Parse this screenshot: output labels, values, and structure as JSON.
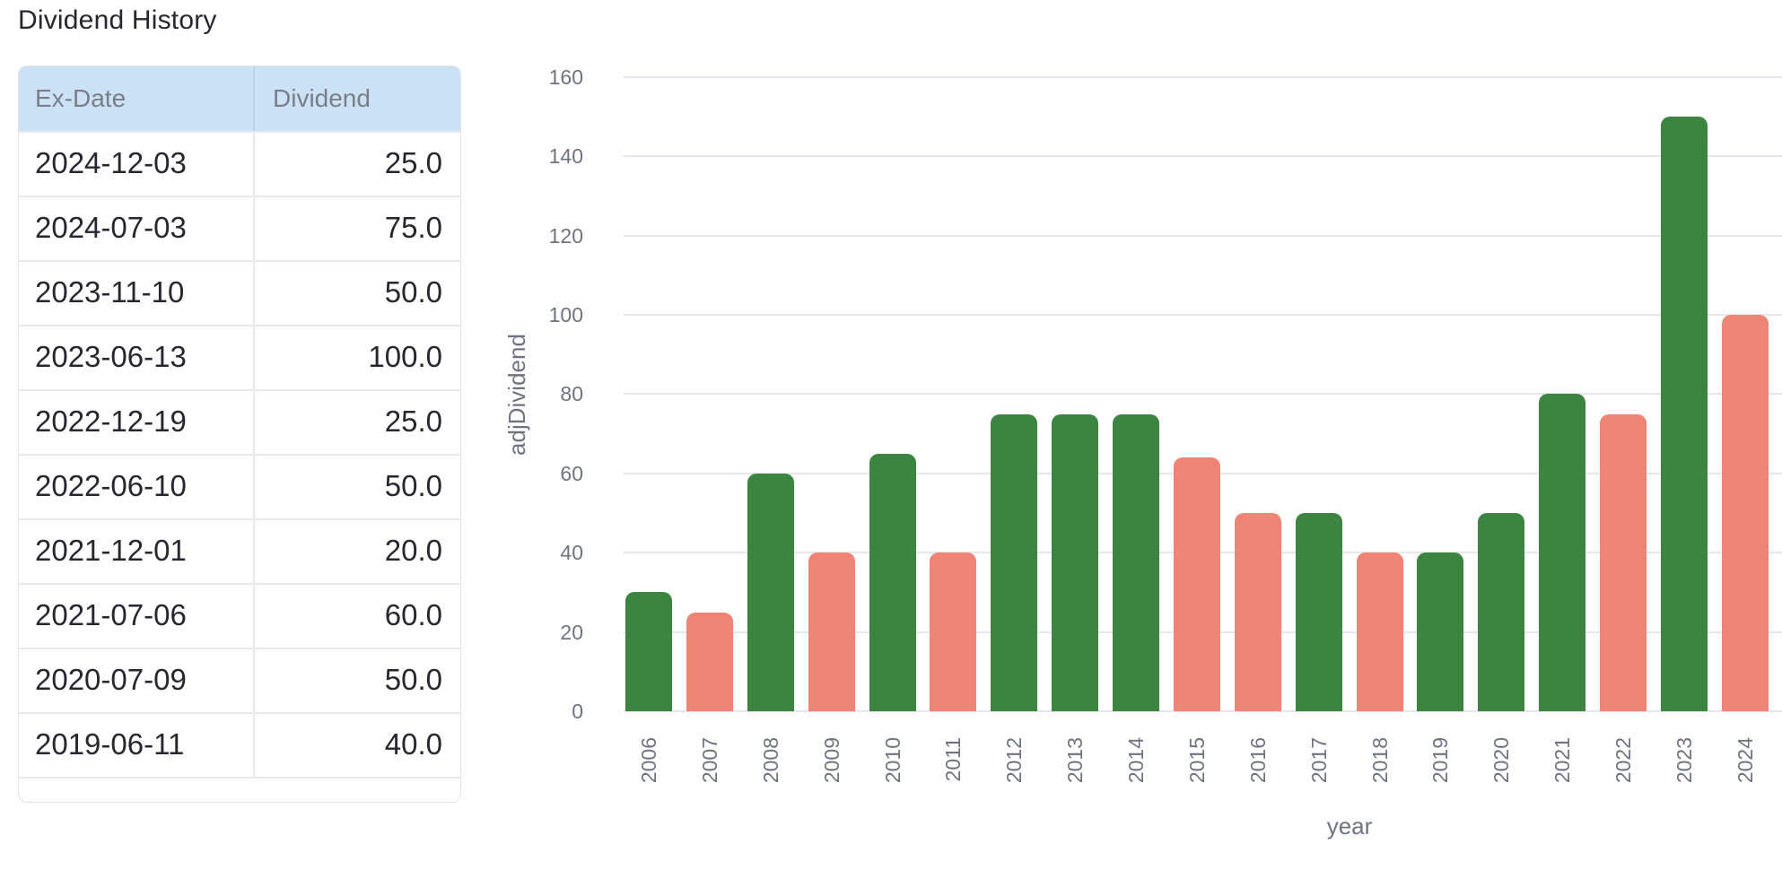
{
  "page": {
    "title": "Dividend History"
  },
  "colors": {
    "header_bg": "#cbe2f6",
    "text_dark": "#262730",
    "muted_text": "#7b7e88",
    "tick_text": "#6e7382",
    "gridline": "#e6e7ee",
    "bar_up": "#3b8540",
    "bar_down": "#ee8474"
  },
  "table": {
    "columns": [
      "Ex-Date",
      "Dividend"
    ],
    "rows": [
      {
        "ex_date": "2024-12-03",
        "dividend": "25.0"
      },
      {
        "ex_date": "2024-07-03",
        "dividend": "75.0"
      },
      {
        "ex_date": "2023-11-10",
        "dividend": "50.0"
      },
      {
        "ex_date": "2023-06-13",
        "dividend": "100.0"
      },
      {
        "ex_date": "2022-12-19",
        "dividend": "25.0"
      },
      {
        "ex_date": "2022-06-10",
        "dividend": "50.0"
      },
      {
        "ex_date": "2021-12-01",
        "dividend": "20.0"
      },
      {
        "ex_date": "2021-07-06",
        "dividend": "60.0"
      },
      {
        "ex_date": "2020-07-09",
        "dividend": "50.0"
      },
      {
        "ex_date": "2019-06-11",
        "dividend": "40.0"
      }
    ]
  },
  "chart_data": {
    "type": "bar",
    "title": "",
    "xlabel": "year",
    "ylabel": "adjDividend",
    "categories": [
      "2006",
      "2007",
      "2008",
      "2009",
      "2010",
      "2011",
      "2012",
      "2013",
      "2014",
      "2015",
      "2016",
      "2017",
      "2018",
      "2019",
      "2020",
      "2021",
      "2022",
      "2023",
      "2024"
    ],
    "values": [
      30,
      25,
      60,
      40,
      65,
      40,
      75,
      75,
      75,
      64,
      50,
      50,
      40,
      40,
      50,
      80,
      75,
      150,
      100
    ],
    "bar_trend": [
      "up",
      "down",
      "up",
      "down",
      "up",
      "down",
      "up",
      "up",
      "up",
      "down",
      "down",
      "up",
      "down",
      "up",
      "up",
      "up",
      "down",
      "up",
      "down"
    ],
    "palette": {
      "up": "#3b8540",
      "down": "#ee8474"
    },
    "ylim": [
      0,
      160
    ],
    "yticks": [
      0,
      20,
      40,
      60,
      80,
      100,
      120,
      140,
      160
    ],
    "grid": true,
    "legend": "none",
    "bar_style": "rounded-top"
  }
}
